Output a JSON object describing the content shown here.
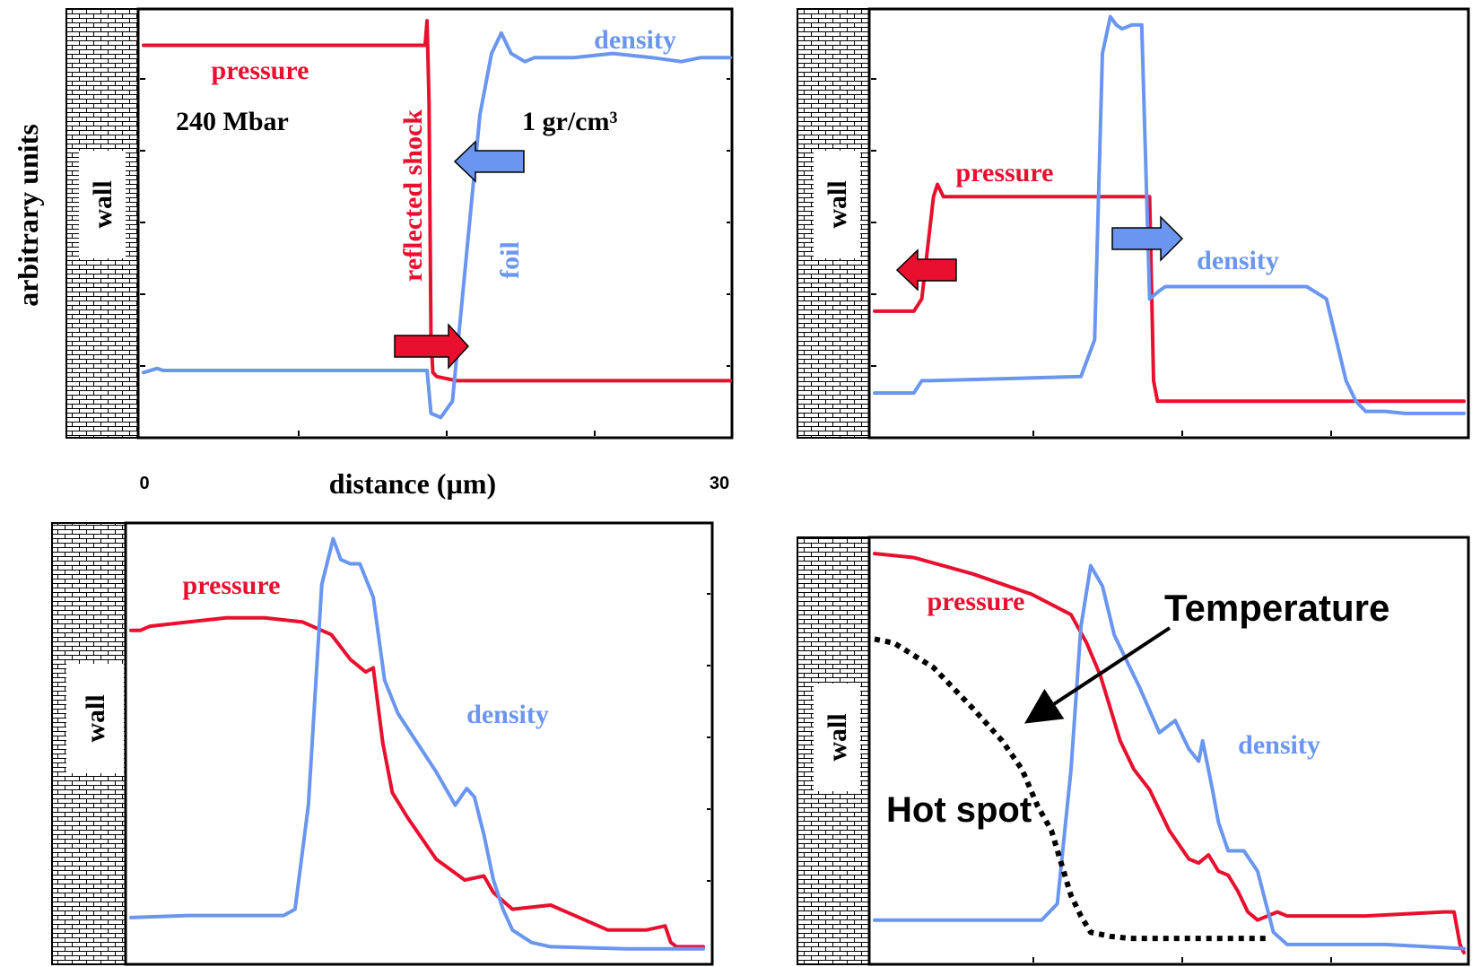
{
  "figure": {
    "ylabel": "arbitrary units",
    "xlabel": "distance (µm)",
    "x_tick_start": "0",
    "x_tick_end": "30"
  },
  "colors": {
    "pressure": "#e8102e",
    "density": "#6a96ef",
    "temperature": "#000000",
    "arrow_red": "#e8102e",
    "arrow_blue": "#6a96ef"
  },
  "chart_data": [
    {
      "type": "line",
      "panel": "top-left",
      "wall_label": "wall",
      "xlim": [
        0,
        30
      ],
      "ylim": [
        0,
        1
      ],
      "annotations": [
        "240 Mbar",
        "1 gr/cm³",
        "reflected shock",
        "foil"
      ],
      "arrows": [
        {
          "color": "blue",
          "direction": "left"
        },
        {
          "color": "red",
          "direction": "right"
        }
      ],
      "series": [
        {
          "name": "pressure",
          "x": [
            0,
            14.2,
            14.4,
            14.5,
            14.6,
            14.7,
            14.8,
            15,
            16,
            30
          ],
          "y": [
            0.92,
            0.92,
            0.92,
            0.98,
            0.78,
            0.2,
            0.12,
            0.11,
            0.1,
            0.1
          ]
        },
        {
          "name": "density",
          "x": [
            0,
            0.7,
            1,
            14.5,
            14.7,
            15.2,
            15.8,
            16.5,
            17.2,
            17.8,
            18.3,
            18.8,
            19.5,
            20,
            20.5,
            22,
            24,
            26,
            27.5,
            28.5,
            30
          ],
          "y": [
            0.12,
            0.13,
            0.125,
            0.125,
            0.02,
            0.01,
            0.05,
            0.4,
            0.75,
            0.9,
            0.95,
            0.9,
            0.88,
            0.89,
            0.89,
            0.89,
            0.9,
            0.89,
            0.88,
            0.89,
            0.89
          ]
        }
      ]
    },
    {
      "type": "line",
      "panel": "top-right",
      "wall_label": "wall",
      "xlim": [
        0,
        30
      ],
      "ylim": [
        0,
        1
      ],
      "arrows": [
        {
          "color": "blue",
          "direction": "right"
        },
        {
          "color": "red",
          "direction": "left"
        }
      ],
      "series": [
        {
          "name": "pressure",
          "x": [
            0,
            2,
            2.4,
            3,
            3.2,
            3.5,
            13.5,
            14,
            14.2,
            14.4,
            15,
            30
          ],
          "y": [
            0.27,
            0.27,
            0.3,
            0.55,
            0.58,
            0.55,
            0.55,
            0.55,
            0.1,
            0.05,
            0.05,
            0.05
          ]
        },
        {
          "name": "density",
          "x": [
            0,
            2,
            2.4,
            2.8,
            10.5,
            11.2,
            11.6,
            12,
            12.3,
            12.6,
            13.1,
            13.6,
            14,
            14.5,
            14.8,
            15.5,
            22,
            23,
            24,
            24.5,
            25,
            26,
            27,
            30
          ],
          "y": [
            0.07,
            0.07,
            0.1,
            0.1,
            0.11,
            0.2,
            0.9,
            0.99,
            0.97,
            0.96,
            0.97,
            0.97,
            0.3,
            0.32,
            0.33,
            0.33,
            0.33,
            0.3,
            0.1,
            0.05,
            0.025,
            0.025,
            0.02,
            0.02
          ]
        }
      ]
    },
    {
      "type": "line",
      "panel": "bottom-left",
      "wall_label": "wall",
      "xlim": [
        0,
        30
      ],
      "ylim": [
        0,
        1
      ],
      "series": [
        {
          "name": "pressure",
          "x": [
            0,
            0.5,
            1,
            3,
            5,
            7,
            9,
            10.5,
            11.5,
            12.3,
            12.7,
            13.2,
            13.7,
            14.5,
            16,
            17.5,
            18.5,
            19,
            20,
            22,
            25,
            27,
            28,
            28.3,
            28.6,
            30
          ],
          "y": [
            0.77,
            0.77,
            0.78,
            0.79,
            0.8,
            0.8,
            0.79,
            0.76,
            0.7,
            0.67,
            0.68,
            0.5,
            0.38,
            0.32,
            0.22,
            0.17,
            0.18,
            0.14,
            0.1,
            0.11,
            0.05,
            0.05,
            0.06,
            0.02,
            0.01,
            0.01
          ]
        },
        {
          "name": "density",
          "x": [
            0,
            3,
            6,
            8,
            8.6,
            9.3,
            10,
            10.6,
            11,
            11.5,
            12,
            12.7,
            13.3,
            14,
            15,
            16,
            17,
            17.6,
            18,
            18.5,
            19,
            19.5,
            20,
            21,
            22,
            26,
            30
          ],
          "y": [
            0.08,
            0.085,
            0.085,
            0.085,
            0.1,
            0.35,
            0.88,
            0.99,
            0.94,
            0.93,
            0.93,
            0.85,
            0.65,
            0.57,
            0.5,
            0.43,
            0.35,
            0.39,
            0.37,
            0.28,
            0.17,
            0.1,
            0.05,
            0.02,
            0.01,
            0.005,
            0.005
          ]
        }
      ]
    },
    {
      "type": "line",
      "panel": "bottom-right",
      "wall_label": "wall",
      "xlim": [
        0,
        30
      ],
      "ylim": [
        0,
        1
      ],
      "annotations": [
        "Temperature",
        "Hot spot"
      ],
      "series": [
        {
          "name": "pressure",
          "x": [
            0,
            2,
            5,
            8,
            10,
            10.8,
            11.5,
            12,
            12.5,
            13.2,
            14,
            15,
            16,
            16.5,
            17,
            17.5,
            18,
            18.5,
            19,
            19.5,
            20,
            20.5,
            21,
            25,
            29,
            29.5,
            29.8,
            30
          ],
          "y": [
            0.98,
            0.97,
            0.93,
            0.88,
            0.83,
            0.76,
            0.68,
            0.6,
            0.52,
            0.45,
            0.4,
            0.3,
            0.23,
            0.22,
            0.24,
            0.2,
            0.19,
            0.15,
            0.1,
            0.08,
            0.09,
            0.1,
            0.09,
            0.09,
            0.1,
            0.1,
            0.02,
            0
          ]
        },
        {
          "name": "density",
          "x": [
            0,
            3,
            6,
            8.5,
            9.3,
            10,
            10.5,
            11,
            11.6,
            12.2,
            12.8,
            13.5,
            14.5,
            15.3,
            16,
            16.5,
            16.7,
            17.2,
            17.5,
            18,
            18.8,
            19.5,
            20.3,
            21,
            22,
            26,
            30
          ],
          "y": [
            0.08,
            0.08,
            0.08,
            0.08,
            0.12,
            0.45,
            0.8,
            0.95,
            0.9,
            0.78,
            0.72,
            0.65,
            0.54,
            0.57,
            0.5,
            0.47,
            0.52,
            0.4,
            0.32,
            0.25,
            0.25,
            0.2,
            0.05,
            0.02,
            0.02,
            0.02,
            0.01
          ]
        },
        {
          "name": "Temperature",
          "x": [
            0,
            1,
            3,
            5,
            6.5,
            7.5,
            8.3,
            9,
            9.5,
            10,
            10.5,
            11,
            12,
            13,
            14,
            20
          ],
          "y": [
            0.77,
            0.76,
            0.7,
            0.6,
            0.52,
            0.45,
            0.36,
            0.3,
            0.22,
            0.14,
            0.09,
            0.05,
            0.04,
            0.035,
            0.035,
            0.035
          ]
        }
      ]
    }
  ]
}
